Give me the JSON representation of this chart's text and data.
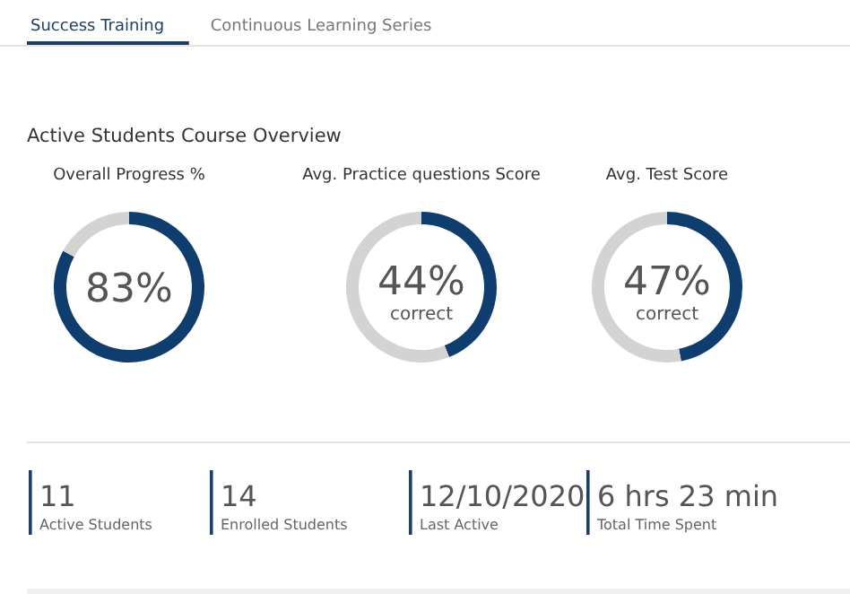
{
  "chart_data": [
    {
      "type": "other",
      "title": "Active Students Course Overview",
      "annotations": [
        "Success Training",
        "Continuous Learning Series"
      ]
    },
    {
      "type": "donut",
      "title": "Overall Progress %",
      "categories": [
        null,
        null
      ],
      "values": [
        83,
        17
      ],
      "colors": [
        "#0f3e6e",
        "#d3d3d3"
      ],
      "value_labels": [
        "83%",
        null
      ]
    },
    {
      "type": "donut",
      "title": "Avg. Practice questions Score",
      "categories": [
        null,
        null
      ],
      "values": [
        44,
        56
      ],
      "colors": [
        "#0f3e6e",
        "#d3d3d3"
      ],
      "value_labels": [
        "44%",
        null
      ],
      "annotations": [
        "correct"
      ]
    },
    {
      "type": "donut",
      "title": "Avg. Test Score",
      "categories": [
        null,
        null
      ],
      "values": [
        47,
        53
      ],
      "colors": [
        "#0f3e6e",
        "#d3d3d3"
      ],
      "value_labels": [
        "47%",
        null
      ],
      "annotations": [
        "correct"
      ]
    },
    {
      "type": "other",
      "annotations": [
        "11",
        "Active Students",
        "14",
        "Enrolled Students",
        "12/10/2020",
        "Last Active",
        "6 hrs 23 min",
        "Total Time Spent"
      ]
    }
  ]
}
